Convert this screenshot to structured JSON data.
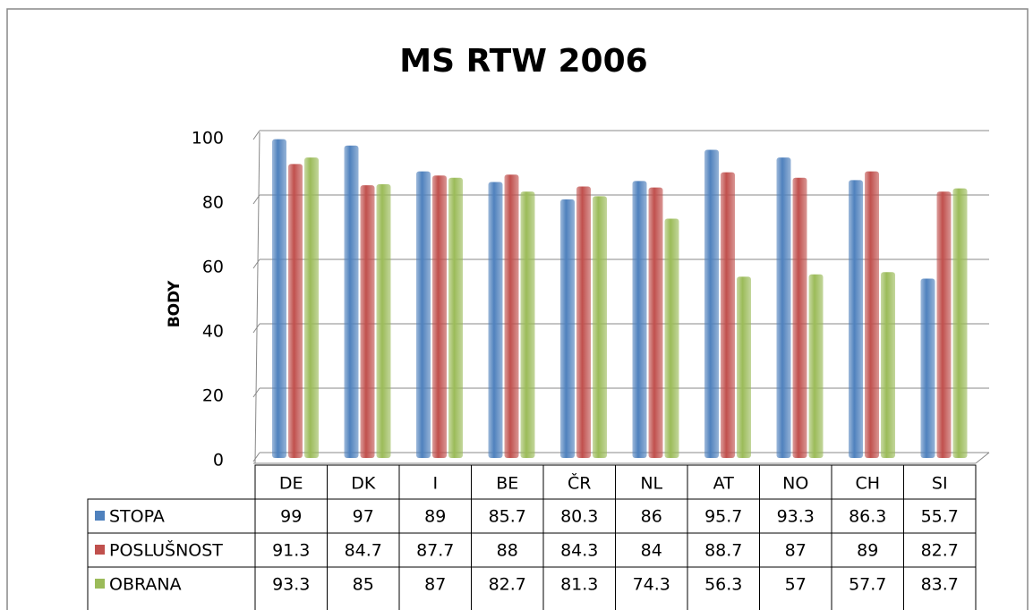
{
  "chart_data": {
    "type": "bar",
    "title": "MS RTW 2006",
    "y_label": "BODY",
    "categories": [
      "DE",
      "DK",
      "I",
      "BE",
      "ČR",
      "NL",
      "AT",
      "NO",
      "CH",
      "SI"
    ],
    "series": [
      {
        "name": "STOPA",
        "color": "#4f81bd",
        "values": [
          99,
          97,
          89,
          85.7,
          80.3,
          86,
          95.7,
          93.3,
          86.3,
          55.7
        ]
      },
      {
        "name": "POSLUŠNOST",
        "color": "#c0504d",
        "values": [
          91.3,
          84.7,
          87.7,
          88,
          84.3,
          84,
          88.7,
          87,
          89,
          82.7
        ]
      },
      {
        "name": "OBRANA",
        "color": "#9bbb59",
        "values": [
          93.3,
          85,
          87,
          82.7,
          81.3,
          74.3,
          56.3,
          57,
          57.7,
          83.7
        ]
      }
    ],
    "ylim": [
      0,
      100
    ],
    "yticks": [
      0,
      20,
      40,
      60,
      80,
      100
    ],
    "grid": true
  }
}
